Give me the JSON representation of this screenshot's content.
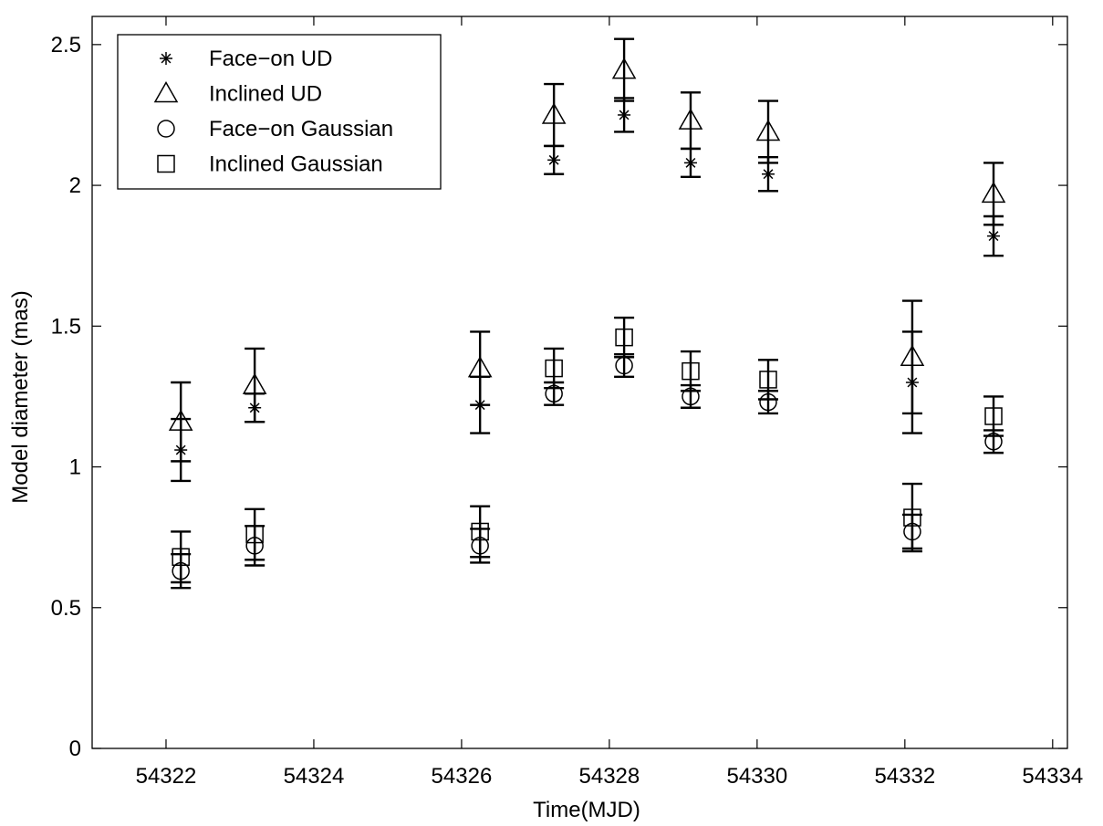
{
  "chart_data": {
    "type": "scatter",
    "xlabel": "Time(MJD)",
    "ylabel": "Model diameter (mas)",
    "xlim": [
      54321.0,
      54334.2
    ],
    "ylim": [
      0,
      2.6
    ],
    "xticks": [
      54322,
      54324,
      54326,
      54328,
      54330,
      54332,
      54334
    ],
    "yticks": [
      0,
      0.5,
      1,
      1.5,
      2,
      2.5
    ],
    "ytick_labels": [
      "0",
      "0.5",
      "1",
      "1.5",
      "2",
      "2.5"
    ],
    "grid": false,
    "legend_position": "top-left",
    "series": [
      {
        "name": "Face−on UD",
        "marker": "asterisk",
        "x": [
          54322.2,
          54323.2,
          54326.25,
          54327.25,
          54328.2,
          54329.1,
          54330.15,
          54332.1,
          54333.2
        ],
        "y": [
          1.06,
          1.21,
          1.22,
          2.09,
          2.25,
          2.08,
          2.04,
          1.3,
          1.82
        ],
        "err": [
          0.11,
          0.05,
          0.1,
          0.05,
          0.06,
          0.05,
          0.06,
          0.18,
          0.07
        ]
      },
      {
        "name": "Inclined UD",
        "marker": "triangle",
        "x": [
          54322.2,
          54323.2,
          54326.25,
          54327.25,
          54328.2,
          54329.1,
          54330.15,
          54332.1,
          54333.2
        ],
        "y": [
          1.16,
          1.29,
          1.35,
          2.25,
          2.41,
          2.23,
          2.19,
          1.39,
          1.97
        ],
        "err": [
          0.14,
          0.13,
          0.13,
          0.11,
          0.11,
          0.1,
          0.11,
          0.2,
          0.11
        ]
      },
      {
        "name": "Face−on Gaussian",
        "marker": "circle",
        "x": [
          54322.2,
          54323.2,
          54326.25,
          54327.25,
          54328.2,
          54329.1,
          54330.15,
          54332.1,
          54333.2
        ],
        "y": [
          0.63,
          0.72,
          0.72,
          1.26,
          1.36,
          1.25,
          1.23,
          0.77,
          1.09
        ],
        "err": [
          0.06,
          0.07,
          0.06,
          0.04,
          0.04,
          0.04,
          0.04,
          0.06,
          0.04
        ]
      },
      {
        "name": "Inclined Gaussian",
        "marker": "square",
        "x": [
          54322.2,
          54323.2,
          54326.25,
          54327.25,
          54328.2,
          54329.1,
          54330.15,
          54332.1,
          54333.2
        ],
        "y": [
          0.68,
          0.76,
          0.77,
          1.35,
          1.46,
          1.34,
          1.31,
          0.82,
          1.18
        ],
        "err": [
          0.09,
          0.09,
          0.09,
          0.07,
          0.07,
          0.07,
          0.07,
          0.12,
          0.07
        ]
      }
    ]
  }
}
